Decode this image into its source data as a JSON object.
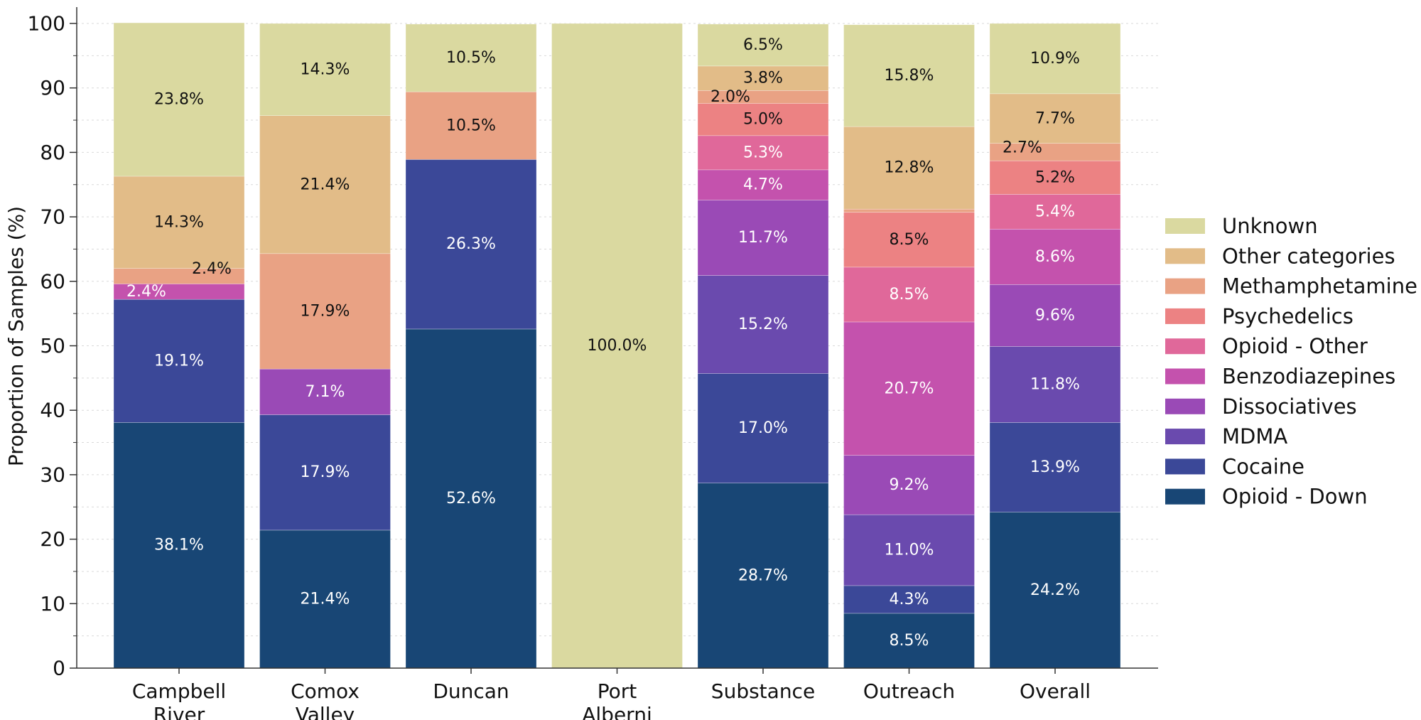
{
  "chart_data": {
    "type": "bar",
    "stacked": true,
    "title": "",
    "xlabel": "",
    "ylabel": "Proportion of Samples (%)",
    "ylim": [
      0,
      100
    ],
    "yticks": [
      "0",
      "10",
      "20",
      "30",
      "40",
      "50",
      "60",
      "70",
      "80",
      "90",
      "100"
    ],
    "grid": "horizontal dotted",
    "legend_position": "right",
    "categories": [
      "Campbell\nRiver",
      "Comox\nValley",
      "Duncan",
      "Port\nAlberni",
      "Substance",
      "Outreach",
      "Overall"
    ],
    "series": [
      {
        "name": "Opioid - Down",
        "color": "#184675",
        "text_color": "#ffffff",
        "values": [
          38.1,
          21.4,
          52.6,
          0,
          28.7,
          8.5,
          24.2
        ],
        "labels": [
          "38.1%",
          "21.4%",
          "52.6%",
          "",
          "28.7%",
          "8.5%",
          "24.2%"
        ]
      },
      {
        "name": "Cocaine",
        "color": "#3b4898",
        "text_color": "#ffffff",
        "values": [
          19.1,
          17.9,
          26.3,
          0,
          17.0,
          4.3,
          13.9
        ],
        "labels": [
          "19.1%",
          "17.9%",
          "26.3%",
          "",
          "17.0%",
          "4.3%",
          "13.9%"
        ]
      },
      {
        "name": "MDMA",
        "color": "#6a4aae",
        "text_color": "#ffffff",
        "values": [
          0,
          0,
          0,
          0,
          15.2,
          11.0,
          11.8
        ],
        "labels": [
          "",
          "",
          "",
          "",
          "15.2%",
          "11.0%",
          "11.8%"
        ]
      },
      {
        "name": "Dissociatives",
        "color": "#9a4ab6",
        "text_color": "#ffffff",
        "values": [
          0,
          7.1,
          0,
          0,
          11.7,
          9.2,
          9.6
        ],
        "labels": [
          "",
          "7.1%",
          "",
          "",
          "11.7%",
          "9.2%",
          "9.6%"
        ]
      },
      {
        "name": "Benzodiazepines",
        "color": "#c452ad",
        "text_color": "#ffffff",
        "values": [
          2.4,
          0,
          0,
          0,
          4.7,
          20.7,
          8.6
        ],
        "labels": [
          "2.4%",
          "",
          "",
          "",
          "4.7%",
          "20.7%",
          "8.6%"
        ]
      },
      {
        "name": "Opioid - Other",
        "color": "#e0689a",
        "text_color": "#ffffff",
        "values": [
          0,
          0,
          0,
          0,
          5.3,
          8.5,
          5.4
        ],
        "labels": [
          "",
          "",
          "",
          "",
          "5.3%",
          "8.5%",
          "5.4%"
        ]
      },
      {
        "name": "Psychedelics",
        "color": "#ec8283",
        "text_color": "#111111",
        "values": [
          0,
          0,
          0,
          0,
          5.0,
          8.5,
          5.2
        ],
        "labels": [
          "",
          "",
          "",
          "",
          "5.0%",
          "8.5%",
          "5.2%"
        ]
      },
      {
        "name": "Methamphetamine",
        "color": "#e9a284",
        "text_color": "#111111",
        "values": [
          2.4,
          17.9,
          10.5,
          0,
          2.0,
          0.5,
          2.7
        ],
        "labels": [
          "2.4%",
          "17.9%",
          "10.5%",
          "",
          "2.0%",
          "",
          "2.7%"
        ]
      },
      {
        "name": "Other categories",
        "color": "#e2bc88",
        "text_color": "#111111",
        "values": [
          14.3,
          21.4,
          0,
          0,
          3.8,
          12.8,
          7.7
        ],
        "labels": [
          "14.3%",
          "21.4%",
          "",
          "",
          "3.8%",
          "12.8%",
          "7.7%"
        ]
      },
      {
        "name": "Unknown",
        "color": "#dad9a0",
        "text_color": "#111111",
        "values": [
          23.8,
          14.3,
          10.5,
          100.0,
          6.5,
          15.8,
          10.9
        ],
        "labels": [
          "23.8%",
          "14.3%",
          "10.5%",
          "100.0%",
          "6.5%",
          "15.8%",
          "10.9%"
        ]
      }
    ]
  }
}
